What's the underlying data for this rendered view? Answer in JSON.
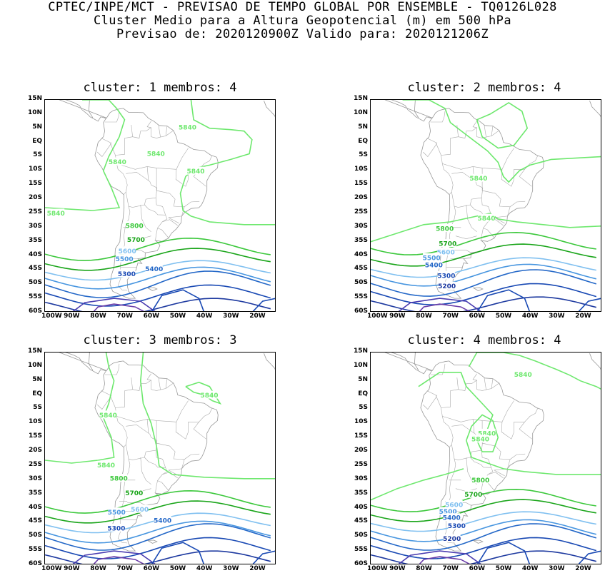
{
  "header": {
    "line1": "CPTEC/INPE/MCT - PREVISAO DE TEMPO GLOBAL POR ENSEMBLE - TQ0126L028",
    "line2": "Cluster Medio para a Altura Geopotencial (m) em 500 hPa",
    "line3": "Previsao de: 2020120900Z    Valido para: 2020121206Z"
  },
  "axes": {
    "lat_labels": [
      "15N",
      "10N",
      "5N",
      "EQ",
      "5S",
      "10S",
      "15S",
      "20S",
      "25S",
      "30S",
      "35S",
      "40S",
      "45S",
      "50S",
      "55S",
      "60S"
    ],
    "lon_labels": [
      "100W",
      "90W",
      "80W",
      "70W",
      "60W",
      "50W",
      "40W",
      "30W",
      "20W"
    ]
  },
  "panels": [
    {
      "title": "cluster: 1   membros: 4",
      "labels": [
        {
          "text": "5840",
          "lon": -46.3,
          "lat": 5.4
        },
        {
          "text": "5840",
          "lon": -72.7,
          "lat": -6.8
        },
        {
          "text": "5840",
          "lon": -43.2,
          "lat": -10.1
        },
        {
          "text": "5840",
          "lon": -58.2,
          "lat": -3.9
        },
        {
          "text": "5840",
          "lon": -95.9,
          "lat": -24.9
        },
        {
          "text": "5800",
          "lon": -66.3,
          "lat": -29.3
        },
        {
          "text": "5700",
          "lon": -65.7,
          "lat": -34.2
        },
        {
          "text": "5600",
          "lon": -69.0,
          "lat": -38.2
        },
        {
          "text": "5500",
          "lon": -70.1,
          "lat": -41.0
        },
        {
          "text": "5400",
          "lon": -58.9,
          "lat": -44.5
        },
        {
          "text": "5300",
          "lon": -69.2,
          "lat": -46.3
        }
      ]
    },
    {
      "title": "cluster: 2   membros: 4",
      "labels": [
        {
          "text": "5840",
          "lon": -59.4,
          "lat": -12.6
        },
        {
          "text": "5840",
          "lon": -56.4,
          "lat": -26.7
        },
        {
          "text": "5800",
          "lon": -72.1,
          "lat": -30.3
        },
        {
          "text": "5700",
          "lon": -71.0,
          "lat": -35.6
        },
        {
          "text": "5600",
          "lon": -71.7,
          "lat": -38.6
        },
        {
          "text": "5500",
          "lon": -77.1,
          "lat": -40.6
        },
        {
          "text": "5400",
          "lon": -76.2,
          "lat": -43.2
        },
        {
          "text": "5300",
          "lon": -71.5,
          "lat": -46.9
        },
        {
          "text": "5200",
          "lon": -71.3,
          "lat": -50.6
        }
      ]
    },
    {
      "title": "cluster: 3   membros: 3",
      "labels": [
        {
          "text": "5840",
          "lon": -38.1,
          "lat": 0.0
        },
        {
          "text": "5840",
          "lon": -76.2,
          "lat": -7.0
        },
        {
          "text": "5840",
          "lon": -77.0,
          "lat": -24.7
        },
        {
          "text": "5800",
          "lon": -72.2,
          "lat": -29.3
        },
        {
          "text": "5700",
          "lon": -66.4,
          "lat": -34.4
        },
        {
          "text": "5600",
          "lon": -64.3,
          "lat": -40.3
        },
        {
          "text": "5500",
          "lon": -73.0,
          "lat": -41.2
        },
        {
          "text": "5400",
          "lon": -55.7,
          "lat": -44.1
        },
        {
          "text": "5300",
          "lon": -73.1,
          "lat": -46.9
        }
      ]
    },
    {
      "title": "cluster: 4   membros: 4",
      "labels": [
        {
          "text": "5840",
          "lon": -42.6,
          "lat": 7.3
        },
        {
          "text": "5840",
          "lon": -56.2,
          "lat": -13.4
        },
        {
          "text": "5840",
          "lon": -58.7,
          "lat": -15.5
        },
        {
          "text": "5800",
          "lon": -58.6,
          "lat": -29.9
        },
        {
          "text": "5700",
          "lon": -61.3,
          "lat": -35.0
        },
        {
          "text": "5600",
          "lon": -68.6,
          "lat": -38.6
        },
        {
          "text": "5500",
          "lon": -70.9,
          "lat": -41.0
        },
        {
          "text": "5400",
          "lon": -69.5,
          "lat": -43.2
        },
        {
          "text": "5300",
          "lon": -67.6,
          "lat": -46.0
        },
        {
          "text": "5200",
          "lon": -69.4,
          "lat": -50.6
        }
      ]
    }
  ],
  "contour_colors": {
    "5840": "#6ee86e",
    "5800": "#3cc83c",
    "5700": "#1aa51a",
    "5600": "#80c0f0",
    "5500": "#4896e0",
    "5400": "#2468c8",
    "5300": "#1a4ab4",
    "5200": "#1e3aa0",
    "5100": "#6a3ca8"
  }
}
